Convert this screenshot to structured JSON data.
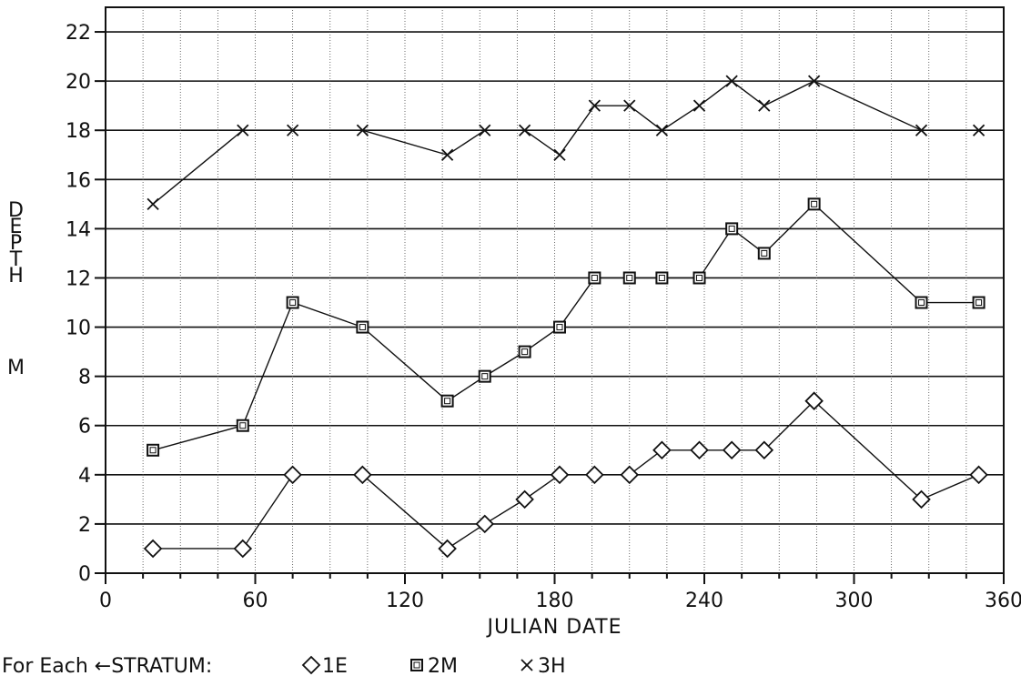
{
  "chart_data": {
    "type": "line",
    "xlabel": "JULIAN DATE",
    "ylabel": "DEPTH M",
    "ylabel_word": "DEPTH",
    "ylabel_unit": "M",
    "xlim": [
      0,
      360
    ],
    "ylim": [
      0,
      23
    ],
    "xticks": [
      0,
      60,
      120,
      180,
      240,
      300,
      360
    ],
    "yticks": [
      0,
      2,
      4,
      6,
      8,
      10,
      12,
      14,
      16,
      18,
      20,
      22
    ],
    "grid": true,
    "legend_prefix": "For Each ←STRATUM:",
    "legend_position": "bottom-left",
    "series": [
      {
        "name": "1E",
        "marker": "diamond",
        "x": [
          19,
          55,
          75,
          103,
          137,
          152,
          168,
          182,
          196,
          210,
          223,
          238,
          251,
          264,
          284,
          327,
          350
        ],
        "y": [
          1,
          1,
          4,
          4,
          1,
          2,
          3,
          4,
          4,
          4,
          5,
          5,
          5,
          5,
          7,
          3,
          4
        ]
      },
      {
        "name": "2M",
        "marker": "square",
        "x": [
          19,
          55,
          75,
          103,
          137,
          152,
          168,
          182,
          196,
          210,
          223,
          238,
          251,
          264,
          284,
          327,
          350
        ],
        "y": [
          5,
          6,
          11,
          10,
          7,
          8,
          9,
          10,
          12,
          12,
          12,
          12,
          14,
          13,
          15,
          11,
          11
        ]
      },
      {
        "name": "3H",
        "marker": "x",
        "x": [
          19,
          55,
          75,
          103,
          137,
          152,
          168,
          182,
          196,
          210,
          223,
          238,
          251,
          264,
          284,
          327,
          350
        ],
        "y": [
          15,
          18,
          18,
          18,
          17,
          18,
          18,
          17,
          19,
          19,
          18,
          19,
          20,
          19,
          20,
          18,
          18
        ]
      }
    ]
  }
}
